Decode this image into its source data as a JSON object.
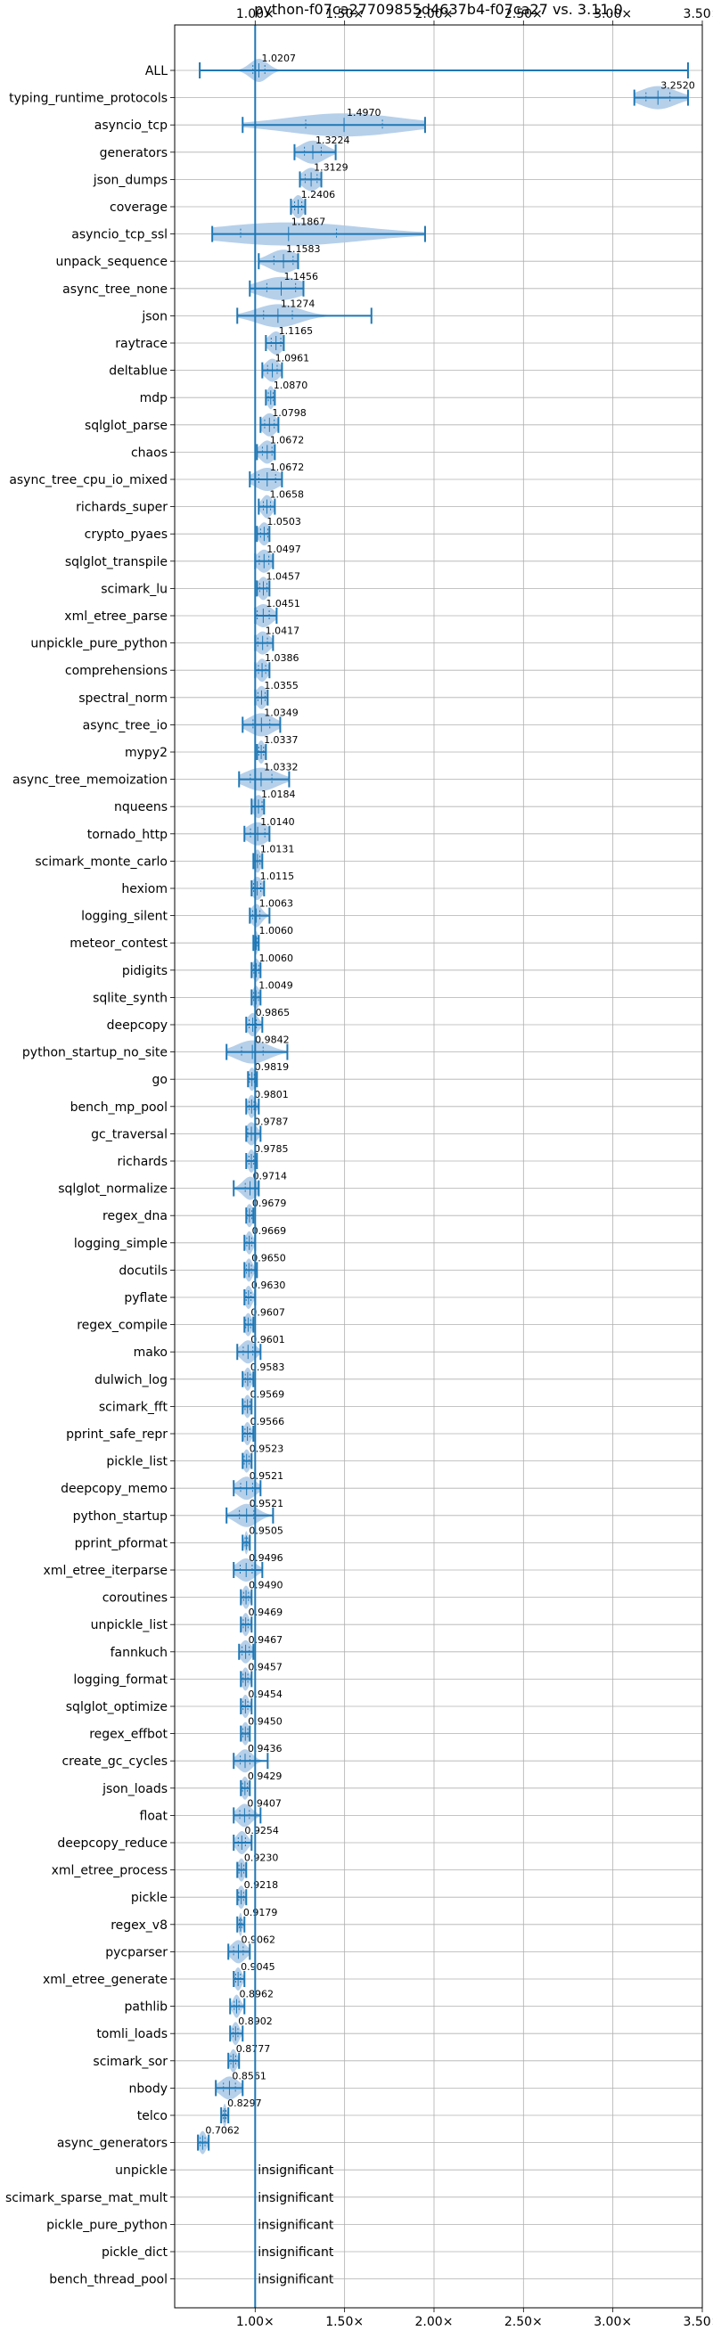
{
  "chart_data": {
    "type": "violin",
    "title": "python-f07ca27709855d4637b4-f07ca27 vs. 3.11.0",
    "xlabel": "",
    "ylabel": "",
    "xlim": [
      0.55,
      3.5
    ],
    "xticks": [
      {
        "value": 1.0,
        "label": "1.00×"
      },
      {
        "value": 1.5,
        "label": "1.50×"
      },
      {
        "value": 2.0,
        "label": "2.00×"
      },
      {
        "value": 2.5,
        "label": "2.50×"
      },
      {
        "value": 3.0,
        "label": "3.00×"
      },
      {
        "value": 3.5,
        "label": "3.50×"
      }
    ],
    "reference_line": 1.0,
    "grid": true,
    "colors": {
      "violin": "#a9c8e6",
      "line": "#1f77b4",
      "grid": "#b0b0b0"
    },
    "benchmarks": [
      {
        "name": "ALL",
        "value_label": "1.0207",
        "median": 1.0207,
        "min": 0.69,
        "max": 3.42,
        "spread": 0.05
      },
      {
        "name": "typing_runtime_protocols",
        "value_label": "3.2520",
        "median": 3.252,
        "min": 3.12,
        "max": 3.42,
        "spread": 0.1
      },
      {
        "name": "asyncio_tcp",
        "value_label": "1.4970",
        "median": 1.497,
        "min": 0.93,
        "max": 1.95,
        "spread": 0.32
      },
      {
        "name": "generators",
        "value_label": "1.3224",
        "median": 1.3224,
        "min": 1.22,
        "max": 1.45,
        "spread": 0.07
      },
      {
        "name": "json_dumps",
        "value_label": "1.3129",
        "median": 1.3129,
        "min": 1.25,
        "max": 1.37,
        "spread": 0.05
      },
      {
        "name": "coverage",
        "value_label": "1.2406",
        "median": 1.2406,
        "min": 1.2,
        "max": 1.28,
        "spread": 0.03
      },
      {
        "name": "asyncio_tcp_ssl",
        "value_label": "1.1867",
        "median": 1.1867,
        "min": 0.76,
        "max": 1.95,
        "spread": 0.4
      },
      {
        "name": "unpack_sequence",
        "value_label": "1.1583",
        "median": 1.1583,
        "min": 1.02,
        "max": 1.24,
        "spread": 0.08
      },
      {
        "name": "async_tree_none",
        "value_label": "1.1456",
        "median": 1.1456,
        "min": 0.97,
        "max": 1.27,
        "spread": 0.12
      },
      {
        "name": "json",
        "value_label": "1.1274",
        "median": 1.1274,
        "min": 0.9,
        "max": 1.65,
        "spread": 0.12
      },
      {
        "name": "raytrace",
        "value_label": "1.1165",
        "median": 1.1165,
        "min": 1.06,
        "max": 1.16,
        "spread": 0.04
      },
      {
        "name": "deltablue",
        "value_label": "1.0961",
        "median": 1.0961,
        "min": 1.04,
        "max": 1.15,
        "spread": 0.04
      },
      {
        "name": "mdp",
        "value_label": "1.0870",
        "median": 1.087,
        "min": 1.06,
        "max": 1.11,
        "spread": 0.02
      },
      {
        "name": "sqlglot_parse",
        "value_label": "1.0798",
        "median": 1.0798,
        "min": 1.03,
        "max": 1.13,
        "spread": 0.04
      },
      {
        "name": "chaos",
        "value_label": "1.0672",
        "median": 1.0672,
        "min": 1.01,
        "max": 1.11,
        "spread": 0.04
      },
      {
        "name": "async_tree_cpu_io_mixed",
        "value_label": "1.0672",
        "median": 1.0672,
        "min": 0.97,
        "max": 1.15,
        "spread": 0.07
      },
      {
        "name": "richards_super",
        "value_label": "1.0658",
        "median": 1.0658,
        "min": 1.02,
        "max": 1.11,
        "spread": 0.03
      },
      {
        "name": "crypto_pyaes",
        "value_label": "1.0503",
        "median": 1.0503,
        "min": 1.01,
        "max": 1.08,
        "spread": 0.03
      },
      {
        "name": "sqlglot_transpile",
        "value_label": "1.0497",
        "median": 1.0497,
        "min": 1.0,
        "max": 1.1,
        "spread": 0.04
      },
      {
        "name": "scimark_lu",
        "value_label": "1.0457",
        "median": 1.0457,
        "min": 1.01,
        "max": 1.08,
        "spread": 0.03
      },
      {
        "name": "xml_etree_parse",
        "value_label": "1.0451",
        "median": 1.0451,
        "min": 1.0,
        "max": 1.12,
        "spread": 0.05
      },
      {
        "name": "unpickle_pure_python",
        "value_label": "1.0417",
        "median": 1.0417,
        "min": 1.0,
        "max": 1.1,
        "spread": 0.04
      },
      {
        "name": "comprehensions",
        "value_label": "1.0386",
        "median": 1.0386,
        "min": 1.0,
        "max": 1.08,
        "spread": 0.03
      },
      {
        "name": "spectral_norm",
        "value_label": "1.0355",
        "median": 1.0355,
        "min": 1.0,
        "max": 1.07,
        "spread": 0.03
      },
      {
        "name": "async_tree_io",
        "value_label": "1.0349",
        "median": 1.0349,
        "min": 0.93,
        "max": 1.14,
        "spread": 0.07
      },
      {
        "name": "mypy2",
        "value_label": "1.0337",
        "median": 1.0337,
        "min": 1.01,
        "max": 1.06,
        "spread": 0.02
      },
      {
        "name": "async_tree_memoization",
        "value_label": "1.0332",
        "median": 1.0332,
        "min": 0.91,
        "max": 1.19,
        "spread": 0.09
      },
      {
        "name": "nqueens",
        "value_label": "1.0184",
        "median": 1.0184,
        "min": 0.98,
        "max": 1.05,
        "spread": 0.03
      },
      {
        "name": "tornado_http",
        "value_label": "1.0140",
        "median": 1.014,
        "min": 0.94,
        "max": 1.08,
        "spread": 0.06
      },
      {
        "name": "scimark_monte_carlo",
        "value_label": "1.0131",
        "median": 1.0131,
        "min": 0.99,
        "max": 1.04,
        "spread": 0.02
      },
      {
        "name": "hexiom",
        "value_label": "1.0115",
        "median": 1.0115,
        "min": 0.98,
        "max": 1.05,
        "spread": 0.03
      },
      {
        "name": "logging_silent",
        "value_label": "1.0063",
        "median": 1.0063,
        "min": 0.97,
        "max": 1.08,
        "spread": 0.03
      },
      {
        "name": "meteor_contest",
        "value_label": "1.0060",
        "median": 1.006,
        "min": 0.99,
        "max": 1.02,
        "spread": 0.01
      },
      {
        "name": "pidigits",
        "value_label": "1.0060",
        "median": 1.006,
        "min": 0.98,
        "max": 1.03,
        "spread": 0.02
      },
      {
        "name": "sqlite_synth",
        "value_label": "1.0049",
        "median": 1.0049,
        "min": 0.98,
        "max": 1.03,
        "spread": 0.02
      },
      {
        "name": "deepcopy",
        "value_label": "0.9865",
        "median": 0.9865,
        "min": 0.95,
        "max": 1.04,
        "spread": 0.03
      },
      {
        "name": "python_startup_no_site",
        "value_label": "0.9842",
        "median": 0.9842,
        "min": 0.84,
        "max": 1.18,
        "spread": 0.09
      },
      {
        "name": "go",
        "value_label": "0.9819",
        "median": 0.9819,
        "min": 0.96,
        "max": 1.01,
        "spread": 0.02
      },
      {
        "name": "bench_mp_pool",
        "value_label": "0.9801",
        "median": 0.9801,
        "min": 0.95,
        "max": 1.02,
        "spread": 0.02
      },
      {
        "name": "gc_traversal",
        "value_label": "0.9787",
        "median": 0.9787,
        "min": 0.95,
        "max": 1.03,
        "spread": 0.03
      },
      {
        "name": "richards",
        "value_label": "0.9785",
        "median": 0.9785,
        "min": 0.95,
        "max": 1.01,
        "spread": 0.02
      },
      {
        "name": "sqlglot_normalize",
        "value_label": "0.9714",
        "median": 0.9714,
        "min": 0.88,
        "max": 1.02,
        "spread": 0.04
      },
      {
        "name": "regex_dna",
        "value_label": "0.9679",
        "median": 0.9679,
        "min": 0.95,
        "max": 0.99,
        "spread": 0.02
      },
      {
        "name": "logging_simple",
        "value_label": "0.9669",
        "median": 0.9669,
        "min": 0.94,
        "max": 1.0,
        "spread": 0.02
      },
      {
        "name": "docutils",
        "value_label": "0.9650",
        "median": 0.965,
        "min": 0.94,
        "max": 1.01,
        "spread": 0.02
      },
      {
        "name": "pyflate",
        "value_label": "0.9630",
        "median": 0.963,
        "min": 0.94,
        "max": 1.0,
        "spread": 0.02
      },
      {
        "name": "regex_compile",
        "value_label": "0.9607",
        "median": 0.9607,
        "min": 0.94,
        "max": 0.99,
        "spread": 0.02
      },
      {
        "name": "mako",
        "value_label": "0.9601",
        "median": 0.9601,
        "min": 0.9,
        "max": 1.03,
        "spread": 0.04
      },
      {
        "name": "dulwich_log",
        "value_label": "0.9583",
        "median": 0.9583,
        "min": 0.93,
        "max": 0.99,
        "spread": 0.02
      },
      {
        "name": "scimark_fft",
        "value_label": "0.9569",
        "median": 0.9569,
        "min": 0.93,
        "max": 0.98,
        "spread": 0.02
      },
      {
        "name": "pprint_safe_repr",
        "value_label": "0.9566",
        "median": 0.9566,
        "min": 0.93,
        "max": 0.99,
        "spread": 0.02
      },
      {
        "name": "pickle_list",
        "value_label": "0.9523",
        "median": 0.9523,
        "min": 0.93,
        "max": 0.98,
        "spread": 0.02
      },
      {
        "name": "deepcopy_memo",
        "value_label": "0.9521",
        "median": 0.9521,
        "min": 0.88,
        "max": 1.03,
        "spread": 0.05
      },
      {
        "name": "python_startup",
        "value_label": "0.9521",
        "median": 0.9521,
        "min": 0.84,
        "max": 1.1,
        "spread": 0.06
      },
      {
        "name": "pprint_pformat",
        "value_label": "0.9505",
        "median": 0.9505,
        "min": 0.93,
        "max": 0.97,
        "spread": 0.01
      },
      {
        "name": "xml_etree_iterparse",
        "value_label": "0.9496",
        "median": 0.9496,
        "min": 0.88,
        "max": 1.04,
        "spread": 0.05
      },
      {
        "name": "coroutines",
        "value_label": "0.9490",
        "median": 0.949,
        "min": 0.92,
        "max": 0.98,
        "spread": 0.02
      },
      {
        "name": "unpickle_list",
        "value_label": "0.9469",
        "median": 0.9469,
        "min": 0.92,
        "max": 0.98,
        "spread": 0.02
      },
      {
        "name": "fannkuch",
        "value_label": "0.9467",
        "median": 0.9467,
        "min": 0.91,
        "max": 0.99,
        "spread": 0.03
      },
      {
        "name": "logging_format",
        "value_label": "0.9457",
        "median": 0.9457,
        "min": 0.92,
        "max": 0.98,
        "spread": 0.02
      },
      {
        "name": "sqlglot_optimize",
        "value_label": "0.9454",
        "median": 0.9454,
        "min": 0.92,
        "max": 0.98,
        "spread": 0.02
      },
      {
        "name": "regex_effbot",
        "value_label": "0.9450",
        "median": 0.945,
        "min": 0.92,
        "max": 0.97,
        "spread": 0.02
      },
      {
        "name": "create_gc_cycles",
        "value_label": "0.9436",
        "median": 0.9436,
        "min": 0.88,
        "max": 1.07,
        "spread": 0.04
      },
      {
        "name": "json_loads",
        "value_label": "0.9429",
        "median": 0.9429,
        "min": 0.92,
        "max": 0.97,
        "spread": 0.02
      },
      {
        "name": "float",
        "value_label": "0.9407",
        "median": 0.9407,
        "min": 0.88,
        "max": 1.03,
        "spread": 0.04
      },
      {
        "name": "deepcopy_reduce",
        "value_label": "0.9254",
        "median": 0.9254,
        "min": 0.88,
        "max": 0.98,
        "spread": 0.03
      },
      {
        "name": "xml_etree_process",
        "value_label": "0.9230",
        "median": 0.923,
        "min": 0.9,
        "max": 0.95,
        "spread": 0.02
      },
      {
        "name": "pickle",
        "value_label": "0.9218",
        "median": 0.9218,
        "min": 0.9,
        "max": 0.95,
        "spread": 0.02
      },
      {
        "name": "regex_v8",
        "value_label": "0.9179",
        "median": 0.9179,
        "min": 0.9,
        "max": 0.94,
        "spread": 0.01
      },
      {
        "name": "pycparser",
        "value_label": "0.9062",
        "median": 0.9062,
        "min": 0.85,
        "max": 0.97,
        "spread": 0.04
      },
      {
        "name": "xml_etree_generate",
        "value_label": "0.9045",
        "median": 0.9045,
        "min": 0.88,
        "max": 0.94,
        "spread": 0.02
      },
      {
        "name": "pathlib",
        "value_label": "0.8962",
        "median": 0.8962,
        "min": 0.86,
        "max": 0.94,
        "spread": 0.02
      },
      {
        "name": "tomli_loads",
        "value_label": "0.8902",
        "median": 0.8902,
        "min": 0.86,
        "max": 0.93,
        "spread": 0.02
      },
      {
        "name": "scimark_sor",
        "value_label": "0.8777",
        "median": 0.8777,
        "min": 0.85,
        "max": 0.91,
        "spread": 0.02
      },
      {
        "name": "nbody",
        "value_label": "0.8561",
        "median": 0.8561,
        "min": 0.78,
        "max": 0.93,
        "spread": 0.05
      },
      {
        "name": "telco",
        "value_label": "0.8297",
        "median": 0.8297,
        "min": 0.81,
        "max": 0.85,
        "spread": 0.01
      },
      {
        "name": "async_generators",
        "value_label": "0.7062",
        "median": 0.7062,
        "min": 0.68,
        "max": 0.74,
        "spread": 0.02
      },
      {
        "name": "unpickle",
        "value_label": "insignificant",
        "insignificant": true
      },
      {
        "name": "scimark_sparse_mat_mult",
        "value_label": "insignificant",
        "insignificant": true
      },
      {
        "name": "pickle_pure_python",
        "value_label": "insignificant",
        "insignificant": true
      },
      {
        "name": "pickle_dict",
        "value_label": "insignificant",
        "insignificant": true
      },
      {
        "name": "bench_thread_pool",
        "value_label": "insignificant",
        "insignificant": true
      }
    ]
  }
}
